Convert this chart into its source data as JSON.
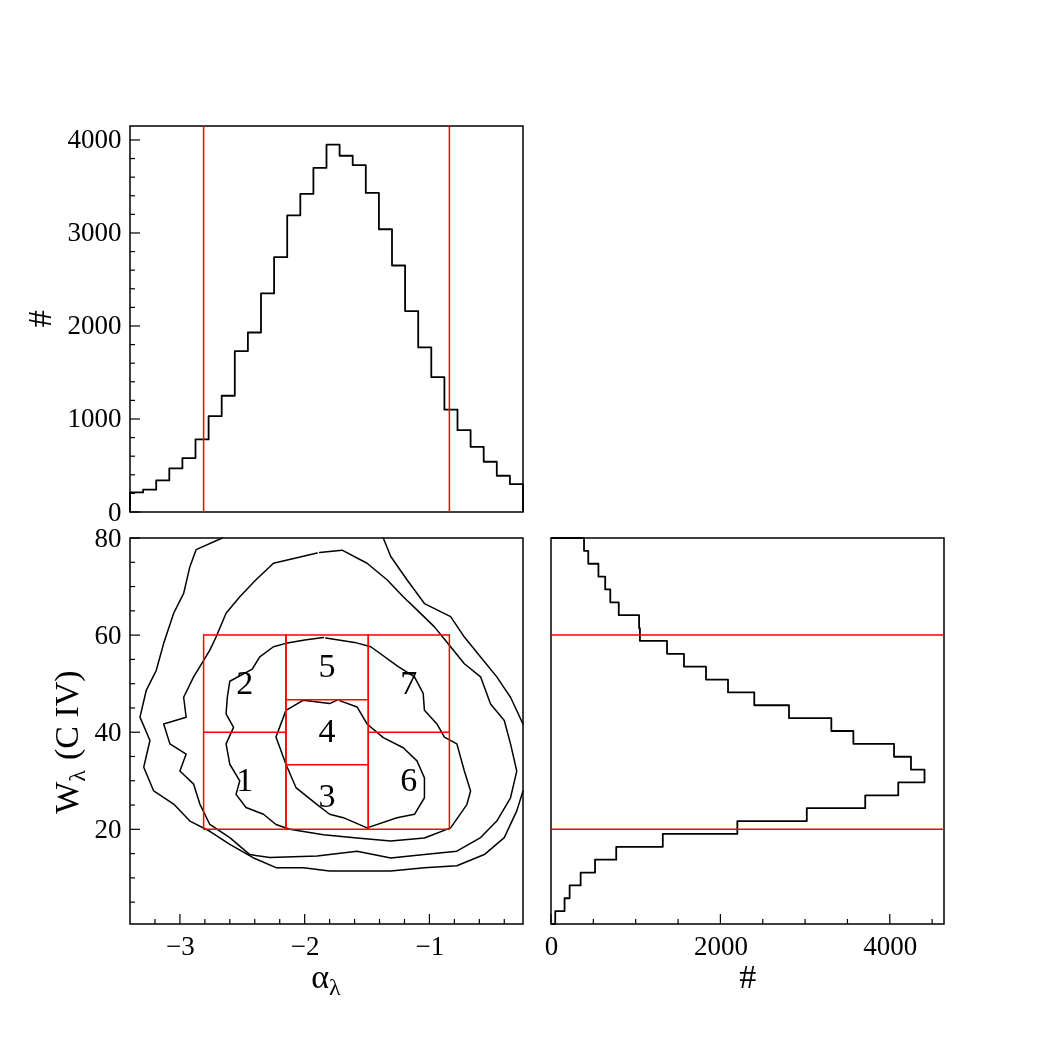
{
  "chart_data": [
    {
      "type": "histogram",
      "ylabel": "#",
      "color": "#000000",
      "bins": [
        -3.4,
        -3.295,
        -3.19,
        -3.085,
        -2.98,
        -2.875,
        -2.77,
        -2.665,
        -2.56,
        -2.455,
        -2.35,
        -2.245,
        -2.14,
        -2.035,
        -1.93,
        -1.825,
        -1.72,
        -1.615,
        -1.51,
        -1.405,
        -1.3,
        -1.195,
        -1.09,
        -0.985,
        -0.88,
        -0.775,
        -0.67,
        -0.565,
        -0.46,
        -0.355,
        -0.25
      ],
      "values": [
        210,
        240,
        340,
        470,
        580,
        780,
        1030,
        1250,
        1730,
        1930,
        2350,
        2740,
        3190,
        3420,
        3700,
        3950,
        3830,
        3730,
        3430,
        3040,
        2650,
        2160,
        1770,
        1450,
        1100,
        880,
        700,
        540,
        390,
        300
      ],
      "xlim": [
        -3.4,
        -0.25
      ],
      "ylim": [
        0,
        4150
      ],
      "yticks": [
        0,
        {
          "value": 200,
          "label": null
        },
        {
          "value": 400,
          "label": null
        },
        {
          "value": 600,
          "label": null
        },
        {
          "value": 800,
          "label": null
        },
        1000,
        {
          "value": 1200,
          "label": null
        },
        {
          "value": 1400,
          "label": null
        },
        {
          "value": 1600,
          "label": null
        },
        {
          "value": 1800,
          "label": null
        },
        2000,
        {
          "value": 2200,
          "label": null
        },
        {
          "value": 2400,
          "label": null
        },
        {
          "value": 2600,
          "label": null
        },
        {
          "value": 2800,
          "label": null
        },
        3000,
        {
          "value": 3200,
          "label": null
        },
        {
          "value": 3400,
          "label": null
        },
        {
          "value": 3600,
          "label": null
        },
        {
          "value": 3800,
          "label": null
        },
        4000
      ],
      "ref_lines": [
        {
          "axis": "x",
          "value": -2.81,
          "color": "#ff0000"
        },
        {
          "axis": "x",
          "value": -0.84,
          "color": "#ff0000"
        }
      ],
      "tick_labels": "y"
    },
    {
      "type": "line",
      "xlabel": "α$_{λ}$",
      "ylabel": "W$_{λ}$ (C IV)",
      "xlim": [
        -3.4,
        -0.25
      ],
      "ylim": [
        0.5,
        80
      ],
      "xticks": [
        {
          "value": -3.2,
          "label": null
        },
        -3,
        {
          "value": -2.8,
          "label": null
        },
        {
          "value": -2.6,
          "label": null
        },
        {
          "value": -2.4,
          "label": null
        },
        {
          "value": -2.2,
          "label": null
        },
        -2,
        {
          "value": -1.8,
          "label": null
        },
        {
          "value": -1.6,
          "label": null
        },
        {
          "value": -1.4,
          "label": null
        },
        {
          "value": -1.2,
          "label": null
        },
        -1,
        {
          "value": -0.8,
          "label": null
        },
        {
          "value": -0.6,
          "label": null
        },
        {
          "value": -0.4,
          "label": null
        }
      ],
      "yticks": [
        {
          "value": 5,
          "label": null
        },
        {
          "value": 10,
          "label": null
        },
        {
          "value": 15,
          "label": null
        },
        20,
        {
          "value": 25,
          "label": null
        },
        {
          "value": 30,
          "label": null
        },
        {
          "value": 35,
          "label": null
        },
        40,
        {
          "value": 45,
          "label": null
        },
        {
          "value": 50,
          "label": null
        },
        {
          "value": 55,
          "label": null
        },
        60,
        {
          "value": 65,
          "label": null
        },
        {
          "value": 70,
          "label": null
        },
        {
          "value": 75,
          "label": null
        },
        80
      ],
      "series": [
        {
          "color": "#000000",
          "x": [
            -2.66,
            -2.87,
            -2.92,
            -2.97,
            -3.05,
            -3.13,
            -3.19,
            -3.27,
            -3.32,
            -3.24,
            -3.29,
            -3.21,
            -3.05,
            -2.92,
            -2.76,
            -2.6,
            -2.41,
            -2.23,
            -2.01,
            -1.8,
            -1.58,
            -1.31,
            -1.04,
            -0.78,
            -0.56,
            -0.4,
            -0.3,
            -0.25
          ],
          "values": [
            80,
            77.6,
            74.1,
            68.6,
            64.5,
            58.3,
            52.7,
            48.6,
            43.1,
            38.3,
            32.8,
            27.9,
            25.2,
            21.7,
            19.6,
            16.9,
            14.1,
            12.1,
            12.1,
            11.4,
            11.4,
            11.4,
            12.1,
            12.5,
            14.8,
            18.3,
            23.8,
            27.9
          ]
        },
        {
          "color": "#000000",
          "x": [
            -0.25,
            -0.35,
            -0.46,
            -0.59,
            -0.72,
            -0.83,
            -1.04,
            -1.18,
            -1.31,
            -1.37
          ],
          "values": [
            41.7,
            47.2,
            51.4,
            55.5,
            59.6,
            63.8,
            66.5,
            71.4,
            76.2,
            80
          ]
        },
        {
          "color": "#000000",
          "x": [
            -1.9,
            -2.25,
            -2.39,
            -2.52,
            -2.63,
            -2.71,
            -2.76,
            -2.89,
            -2.97,
            -2.95,
            -3.13,
            -3.08,
            -2.95,
            -3.0,
            -2.89,
            -2.84,
            -2.76,
            -2.6,
            -2.44,
            -2.28,
            -1.9,
            -1.58,
            -1.31,
            -1.04,
            -0.78,
            -0.59,
            -0.46,
            -0.35,
            -0.3,
            -0.35,
            -0.4,
            -0.51,
            -0.59,
            -0.72,
            -0.83,
            -0.96,
            -1.1,
            -1.21,
            -1.34,
            -1.5,
            -1.7,
            -1.88
          ],
          "values": [
            76.9,
            74.8,
            71.4,
            67.9,
            64.5,
            59.6,
            56.9,
            51.4,
            47.2,
            43.1,
            41.7,
            37.6,
            35.5,
            32.0,
            29.3,
            25.2,
            21.0,
            18.3,
            14.8,
            14.2,
            14.5,
            15.5,
            14.1,
            14.8,
            15.5,
            18.3,
            21.7,
            26.5,
            32.0,
            37.6,
            42.4,
            45.8,
            51.4,
            54.1,
            57.6,
            61.7,
            65.2,
            67.9,
            71.4,
            74.8,
            77.5,
            77.0
          ]
        },
        {
          "color": "#000000",
          "x": [
            -1.85,
            -2.0,
            -2.15,
            -2.25,
            -2.36,
            -2.42,
            -2.6,
            -2.62,
            -2.63,
            -2.57,
            -2.63,
            -2.6,
            -2.52,
            -2.55,
            -2.47,
            -2.33,
            -2.23,
            -2.12,
            -1.85,
            -1.58,
            -1.31,
            -1.04,
            -0.83,
            -0.7,
            -0.67,
            -0.72,
            -0.78,
            -0.88,
            -0.94,
            -1.04,
            -1.05,
            -1.12,
            -1.25,
            -1.47,
            -1.6,
            -1.83
          ],
          "values": [
            59.5,
            59.0,
            58.3,
            57.6,
            55.5,
            53.0,
            50.5,
            47.2,
            43.8,
            41.0,
            37.6,
            33.4,
            30.0,
            27.2,
            24.5,
            23.1,
            21.0,
            20.0,
            18.9,
            18.2,
            17.6,
            18.2,
            20.3,
            25.1,
            27.9,
            32.0,
            37.6,
            39.0,
            41.7,
            44.5,
            48.0,
            51.4,
            53.5,
            57.6,
            58.5,
            59.4
          ]
        },
        {
          "color": "#000000",
          "x": [
            -1.74,
            -1.8,
            -2.01,
            -2.15,
            -2.23,
            -2.15,
            -2.07,
            -1.9,
            -1.8,
            -1.69,
            -1.5,
            -1.26,
            -1.12,
            -1.04,
            -1.04,
            -1.1,
            -1.21,
            -1.37,
            -1.5,
            -1.58,
            -1.72
          ],
          "values": [
            46.6,
            45.9,
            46.6,
            44.5,
            39.0,
            33.4,
            28.6,
            25.1,
            23.1,
            22.4,
            20.3,
            22.4,
            23.1,
            26.5,
            30.6,
            34.1,
            36.8,
            38.9,
            41.7,
            45.2,
            46.5
          ]
        },
        {
          "name": "1",
          "color": "#ff0000",
          "x": [
            -2.81,
            -2.81,
            -2.15,
            -2.15
          ],
          "values": [
            40,
            20,
            20,
            40
          ]
        },
        {
          "name": "2",
          "color": "#ff0000",
          "x": [
            -2.81,
            -2.81,
            -2.15,
            -2.15
          ],
          "values": [
            60,
            40,
            40,
            60
          ]
        },
        {
          "name": "3",
          "color": "#ff0000",
          "x": [
            -2.15,
            -2.15,
            -1.49,
            -1.49
          ],
          "values": [
            33.3,
            20,
            20,
            33.3
          ]
        },
        {
          "name": "4",
          "color": "#ff0000",
          "x": [
            -2.15,
            -2.15,
            -1.49,
            -1.49
          ],
          "values": [
            46.7,
            33.3,
            33.3,
            46.7
          ]
        },
        {
          "name": "5",
          "color": "#ff0000",
          "x": [
            -2.15,
            -2.15,
            -1.49,
            -1.49
          ],
          "values": [
            60,
            46.7,
            46.7,
            60
          ]
        },
        {
          "name": "6",
          "color": "#ff0000",
          "x": [
            -1.49,
            -1.49,
            -0.84,
            -0.84
          ],
          "values": [
            40,
            20,
            20,
            40
          ]
        },
        {
          "name": "7",
          "color": "#ff0000",
          "x": [
            -1.49,
            -1.49,
            -0.84,
            -0.84
          ],
          "values": [
            60,
            40,
            40,
            60
          ]
        },
        {
          "color": "#ff0000",
          "x": [
            -2.81,
            -0.84
          ],
          "values": [
            60,
            60
          ]
        }
      ]
    },
    {
      "type": "histogram",
      "orientation": "horizontal",
      "xlabel": "#",
      "color": "#000000",
      "bins": [
        0.5,
        3.15,
        5.8,
        8.45,
        11.1,
        13.75,
        16.4,
        19.05,
        21.7,
        24.35,
        27.0,
        29.65,
        32.3,
        34.95,
        37.6,
        40.25,
        42.9,
        45.55,
        48.2,
        50.85,
        53.5,
        56.15,
        58.8,
        61.45,
        64.1,
        66.75,
        69.4,
        72.05,
        74.7,
        77.35,
        80.0
      ],
      "values": [
        50,
        160,
        220,
        350,
        520,
        770,
        1320,
        2200,
        3020,
        3710,
        4100,
        4410,
        4250,
        4050,
        3570,
        3310,
        2810,
        2400,
        2090,
        1830,
        1570,
        1370,
        1050,
        1040,
        800,
        700,
        640,
        560,
        440,
        390
      ],
      "xlim": [
        0,
        4640
      ],
      "ylim": [
        0.5,
        80
      ],
      "xticks": [
        0,
        {
          "value": 500,
          "label": null
        },
        {
          "value": 1000,
          "label": null
        },
        {
          "value": 1500,
          "label": null
        },
        2000,
        {
          "value": 2500,
          "label": null
        },
        {
          "value": 3000,
          "label": null
        },
        {
          "value": 3500,
          "label": null
        },
        4000,
        {
          "value": 4500,
          "label": null
        }
      ],
      "ref_lines": [
        {
          "axis": "y",
          "value": 60,
          "color": "#ff0000"
        },
        {
          "axis": "y",
          "value": 20,
          "color": "#ff0000"
        }
      ],
      "tick_labels": "x"
    }
  ]
}
